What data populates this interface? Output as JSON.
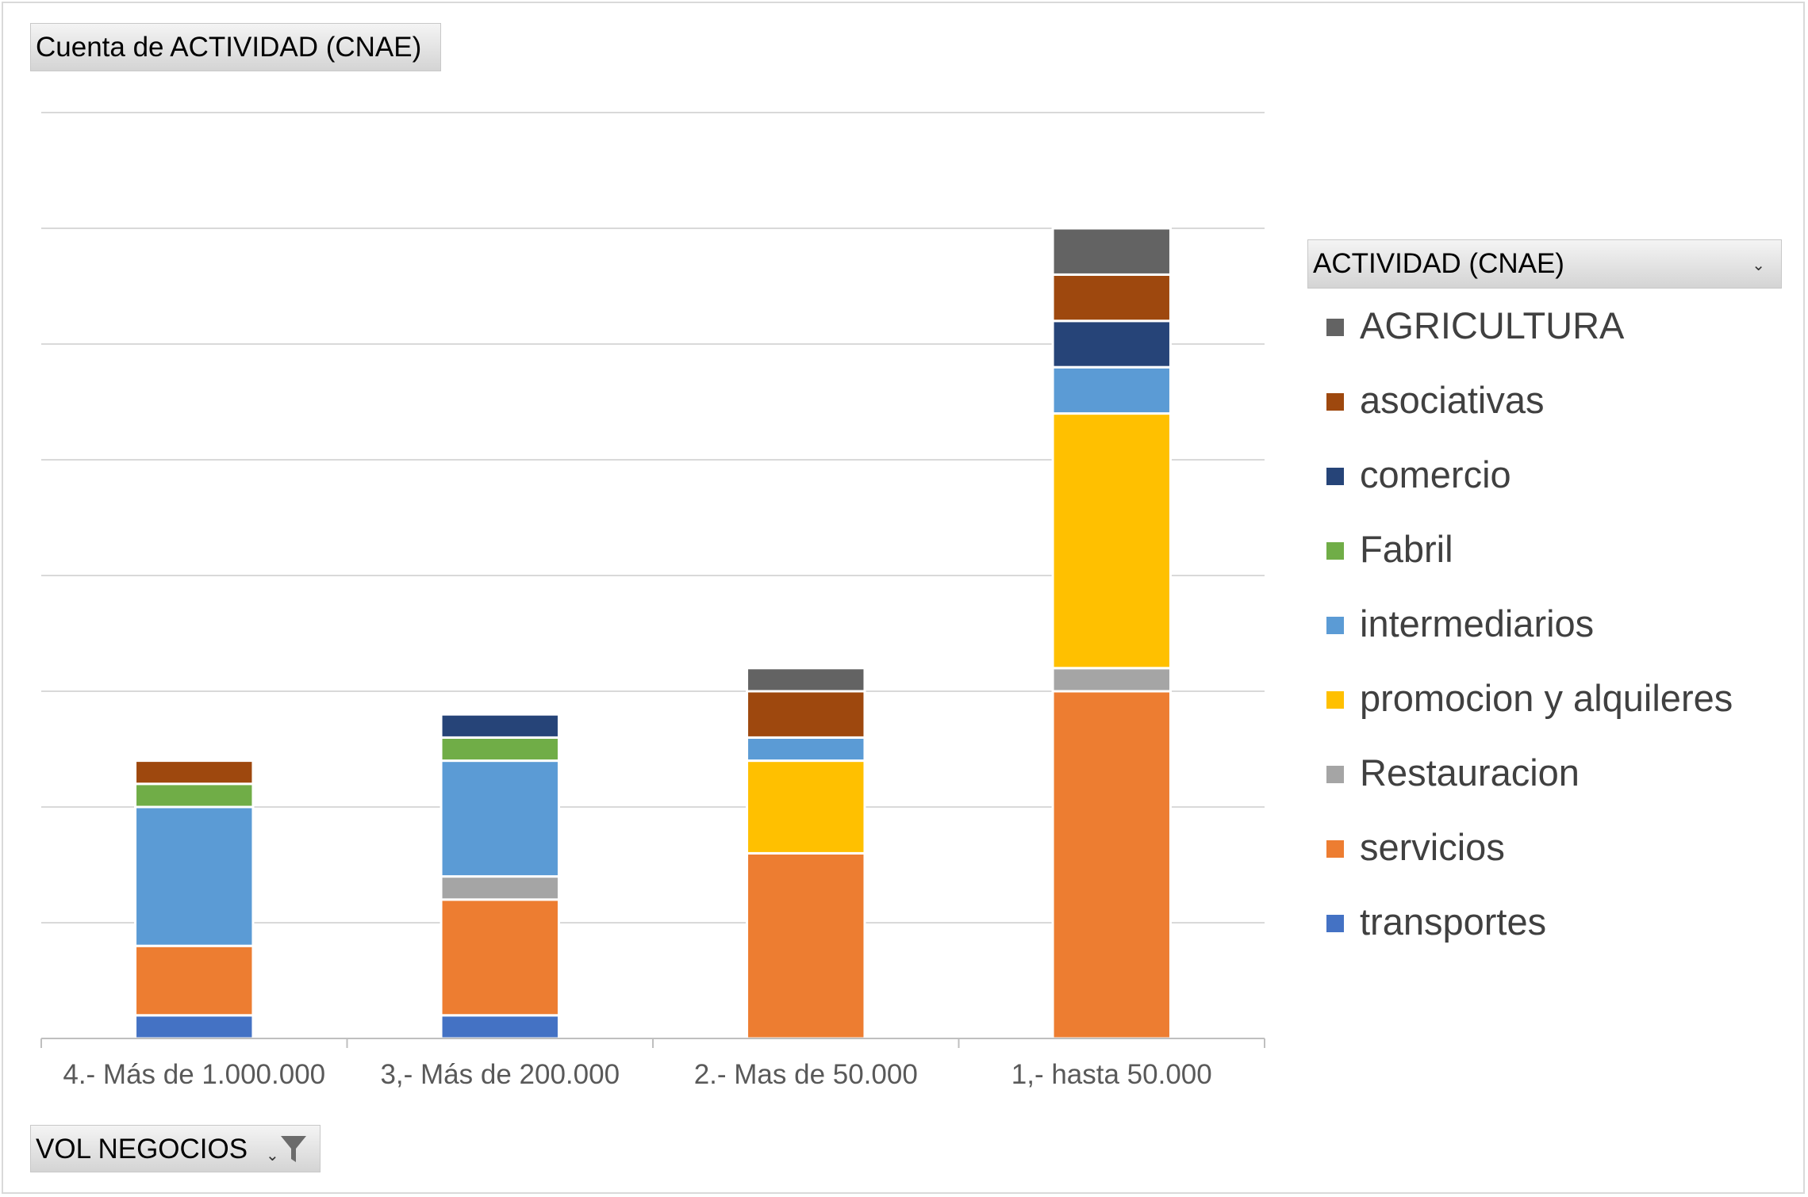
{
  "value_field": {
    "label": "Cuenta de ACTIVIDAD (CNAE)"
  },
  "axis_field": {
    "label": "VOL NEGOCIOS",
    "filter_icon": "filter-icon",
    "dropdown_icon": "chevron-down-icon"
  },
  "legend_field": {
    "label": "ACTIVIDAD (CNAE)",
    "dropdown_icon": "chevron-down-icon"
  },
  "chart_data": {
    "type": "bar",
    "stacked": true,
    "categories": [
      "4.- Más de 1.000.000",
      "3,- Más de 200.000",
      "2.- Mas de 50.000",
      "1,- hasta 50.000"
    ],
    "ylim": [
      0,
      8
    ],
    "y_gridlines": 8,
    "y_tick_labels_visible": false,
    "grid": true,
    "legend_position": "right",
    "series": [
      {
        "name": "transportes",
        "color": "#4472C4",
        "values": [
          0.2,
          0.2,
          0,
          0
        ]
      },
      {
        "name": "servicios",
        "color": "#ED7D31",
        "values": [
          0.6,
          1.0,
          1.6,
          3.0
        ]
      },
      {
        "name": "Restauracion",
        "color": "#A5A5A5",
        "values": [
          0,
          0.2,
          0,
          0.2
        ]
      },
      {
        "name": "promocion y alquileres",
        "color": "#FFC000",
        "values": [
          0,
          0,
          0.8,
          2.2
        ]
      },
      {
        "name": "intermediarios",
        "color": "#5B9BD5",
        "values": [
          1.2,
          1.0,
          0.2,
          0.4
        ]
      },
      {
        "name": "Fabril",
        "color": "#70AD47",
        "values": [
          0.2,
          0.2,
          0,
          0
        ]
      },
      {
        "name": "comercio",
        "color": "#264478",
        "values": [
          0,
          0.2,
          0,
          0.4
        ]
      },
      {
        "name": "asociativas",
        "color": "#9E480E",
        "values": [
          0.2,
          0,
          0.4,
          0.4
        ]
      },
      {
        "name": "AGRICULTURA",
        "color": "#636363",
        "values": [
          0,
          0,
          0.2,
          0.4
        ]
      }
    ],
    "legend_order": [
      "AGRICULTURA",
      "asociativas",
      "comercio",
      "Fabril",
      "intermediarios",
      "promocion y alquileres",
      "Restauracion",
      "servicios",
      "transportes"
    ]
  }
}
